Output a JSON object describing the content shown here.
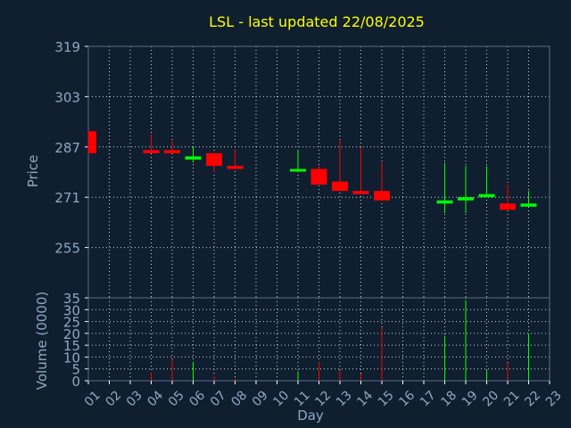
{
  "chart_data": {
    "type": "candlestick",
    "title": "LSL - last updated 22/08/2025",
    "xlabel": "Day",
    "x_ticks": [
      "01",
      "02",
      "03",
      "04",
      "05",
      "06",
      "07",
      "08",
      "09",
      "10",
      "11",
      "12",
      "13",
      "14",
      "15",
      "16",
      "17",
      "18",
      "19",
      "20",
      "21",
      "22",
      "23"
    ],
    "price_panel": {
      "ylabel": "Price",
      "ylim": [
        239,
        319
      ],
      "y_ticks": [
        319,
        303,
        287,
        271,
        255
      ],
      "grid": true,
      "candles": [
        {
          "day": "01",
          "open": 292,
          "high": 292,
          "low": 285,
          "close": 285
        },
        {
          "day": "04",
          "open": 286,
          "high": 291,
          "low": 285,
          "close": 285
        },
        {
          "day": "05",
          "open": 286,
          "high": 289,
          "low": 285,
          "close": 285
        },
        {
          "day": "06",
          "open": 283,
          "high": 287,
          "low": 282,
          "close": 284
        },
        {
          "day": "07",
          "open": 285,
          "high": 285,
          "low": 279,
          "close": 281
        },
        {
          "day": "08",
          "open": 281,
          "high": 286,
          "low": 280,
          "close": 280
        },
        {
          "day": "11",
          "open": 280,
          "high": 286,
          "low": 279,
          "close": 280
        },
        {
          "day": "12",
          "open": 280,
          "high": 281,
          "low": 275,
          "close": 275
        },
        {
          "day": "13",
          "open": 276,
          "high": 289,
          "low": 273,
          "close": 273
        },
        {
          "day": "14",
          "open": 273,
          "high": 287,
          "low": 272,
          "close": 272
        },
        {
          "day": "15",
          "open": 273,
          "high": 282,
          "low": 270,
          "close": 270
        },
        {
          "day": "18",
          "open": 269,
          "high": 282,
          "low": 266,
          "close": 270
        },
        {
          "day": "19",
          "open": 270,
          "high": 281,
          "low": 266,
          "close": 271
        },
        {
          "day": "20",
          "open": 271,
          "high": 281,
          "low": 271,
          "close": 272
        },
        {
          "day": "21",
          "open": 269,
          "high": 275,
          "low": 267,
          "close": 267
        },
        {
          "day": "22",
          "open": 268,
          "high": 273,
          "low": 268,
          "close": 269
        }
      ]
    },
    "volume_panel": {
      "ylabel": "Volume (0000)",
      "ylim": [
        0,
        35
      ],
      "y_ticks": [
        35,
        30,
        25,
        20,
        15,
        10,
        5,
        0
      ],
      "grid": true,
      "bars": [
        {
          "day": "04",
          "value": 3.5,
          "direction": "down"
        },
        {
          "day": "05",
          "value": 9,
          "direction": "down"
        },
        {
          "day": "06",
          "value": 8,
          "direction": "up"
        },
        {
          "day": "07",
          "value": 2,
          "direction": "down"
        },
        {
          "day": "08",
          "value": 1,
          "direction": "down"
        },
        {
          "day": "11",
          "value": 4,
          "direction": "up"
        },
        {
          "day": "12",
          "value": 8,
          "direction": "down"
        },
        {
          "day": "13",
          "value": 4.5,
          "direction": "down"
        },
        {
          "day": "14",
          "value": 3,
          "direction": "down"
        },
        {
          "day": "15",
          "value": 22.5,
          "direction": "down"
        },
        {
          "day": "18",
          "value": 19,
          "direction": "up"
        },
        {
          "day": "19",
          "value": 34,
          "direction": "up"
        },
        {
          "day": "20",
          "value": 4.5,
          "direction": "up"
        },
        {
          "day": "21",
          "value": 7.5,
          "direction": "down"
        },
        {
          "day": "22",
          "value": 20,
          "direction": "up"
        }
      ]
    },
    "colors": {
      "background": "#0f1f30",
      "axis": "#ffffff",
      "grid": "#ffffff",
      "up": "#00ff00",
      "down": "#ff0000",
      "title": "#ffff00",
      "labels": "#8fa7c3"
    }
  }
}
